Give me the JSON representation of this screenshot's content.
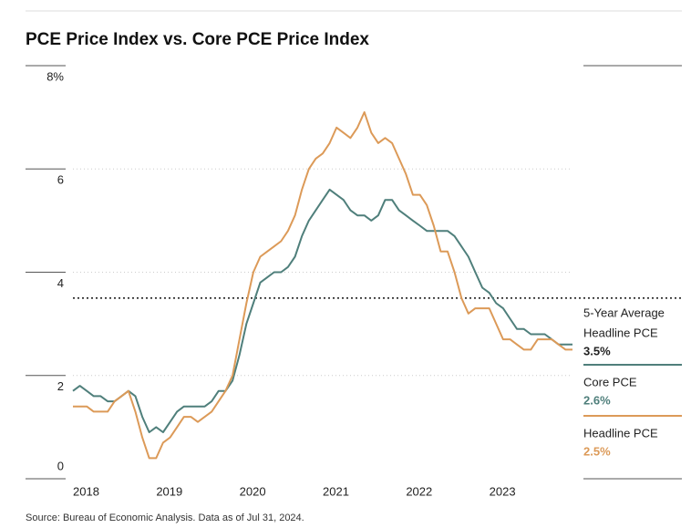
{
  "chart_data": {
    "type": "line",
    "title": "PCE Price Index vs. Core PCE Price Index",
    "categories": [
      "2018",
      null,
      null,
      null,
      null,
      null,
      null,
      null,
      null,
      null,
      null,
      null,
      "2019",
      null,
      null,
      null,
      null,
      null,
      null,
      null,
      null,
      null,
      null,
      null,
      "2020",
      null,
      null,
      null,
      null,
      null,
      null,
      null,
      null,
      null,
      null,
      null,
      "2021",
      null,
      null,
      null,
      null,
      null,
      null,
      null,
      null,
      null,
      null,
      null,
      "2022",
      null,
      null,
      null,
      null,
      null,
      null,
      null,
      null,
      null,
      null,
      null,
      "2023",
      null,
      null,
      null,
      null,
      null,
      null,
      null,
      null,
      null,
      null,
      null,
      null
    ],
    "series": [
      {
        "name": "Core PCE",
        "color": "#4f7f7b",
        "last_label": "2.6%",
        "values": [
          1.7,
          1.8,
          1.7,
          1.6,
          1.6,
          1.5,
          1.5,
          1.6,
          1.7,
          1.6,
          1.2,
          0.9,
          1.0,
          0.9,
          1.1,
          1.3,
          1.4,
          1.4,
          1.4,
          1.4,
          1.5,
          1.7,
          1.7,
          1.9,
          2.4,
          3.0,
          3.4,
          3.8,
          3.9,
          4.0,
          4.0,
          4.1,
          4.3,
          4.7,
          5.0,
          5.2,
          5.4,
          5.6,
          5.5,
          5.4,
          5.2,
          5.1,
          5.1,
          5.0,
          5.1,
          5.4,
          5.4,
          5.2,
          5.1,
          5.0,
          4.9,
          4.8,
          4.8,
          4.8,
          4.8,
          4.7,
          4.5,
          4.3,
          4.0,
          3.7,
          3.6,
          3.4,
          3.3,
          3.1,
          2.9,
          2.9,
          2.8,
          2.8,
          2.8,
          2.7,
          2.6,
          2.6,
          2.6
        ]
      },
      {
        "name": "Headline PCE",
        "color": "#dc9a58",
        "last_label": "2.5%",
        "values": [
          1.4,
          1.4,
          1.4,
          1.3,
          1.3,
          1.3,
          1.5,
          1.6,
          1.7,
          1.3,
          0.8,
          0.4,
          0.4,
          0.7,
          0.8,
          1.0,
          1.2,
          1.2,
          1.1,
          1.2,
          1.3,
          1.5,
          1.7,
          2.0,
          2.7,
          3.4,
          4.0,
          4.3,
          4.4,
          4.5,
          4.6,
          4.8,
          5.1,
          5.6,
          6.0,
          6.2,
          6.3,
          6.5,
          6.8,
          6.7,
          6.6,
          6.8,
          7.1,
          6.7,
          6.5,
          6.6,
          6.5,
          6.2,
          5.9,
          5.5,
          5.5,
          5.3,
          4.9,
          4.4,
          4.4,
          4.0,
          3.5,
          3.2,
          3.3,
          3.3,
          3.3,
          3.0,
          2.7,
          2.7,
          2.6,
          2.5,
          2.5,
          2.7,
          2.7,
          2.7,
          2.6,
          2.5,
          2.5
        ]
      }
    ],
    "reference_line": {
      "value": 3.5,
      "label_lines": [
        "5-Year Average",
        "Headline PCE"
      ],
      "value_label": "3.5%"
    },
    "ylim": [
      0,
      8
    ],
    "yticks": [
      0,
      2,
      4,
      6,
      {
        "value": 8,
        "label": "8%"
      }
    ],
    "grid": true,
    "source": "Source: Bureau of Economic Analysis. Data as of Jul 31, 2024."
  }
}
